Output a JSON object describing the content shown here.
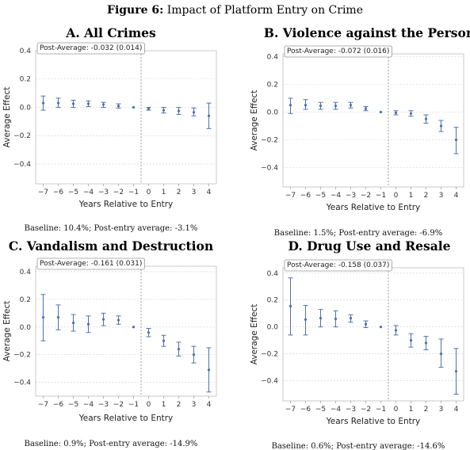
{
  "figure": {
    "title_bold": "Figure 6:",
    "title_rest": " Impact of Platform Entry on Crime"
  },
  "chart_data": [
    {
      "type": "scatter",
      "title": "A. All Crimes",
      "xlabel": "Years Relative to Entry",
      "ylabel": "Average Effect",
      "x": [
        -7,
        -6,
        -5,
        -4,
        -3,
        -2,
        -1,
        0,
        1,
        2,
        3,
        4
      ],
      "y": [
        0.03,
        0.03,
        0.025,
        0.025,
        0.02,
        0.01,
        0.0,
        -0.01,
        -0.02,
        -0.025,
        -0.035,
        -0.06
      ],
      "ci_low": [
        -0.02,
        0.0,
        0.0,
        0.005,
        0.0,
        -0.005,
        0.0,
        -0.02,
        -0.04,
        -0.05,
        -0.06,
        -0.15
      ],
      "ci_high": [
        0.08,
        0.065,
        0.05,
        0.045,
        0.035,
        0.025,
        0.0,
        0.0,
        0.0,
        0.0,
        -0.005,
        0.03
      ],
      "xticks": [
        -7,
        -6,
        -5,
        -4,
        -3,
        -2,
        -1,
        0,
        1,
        2,
        3,
        4
      ],
      "yticks": [
        0.4,
        0.2,
        0.0,
        -0.2,
        -0.4
      ],
      "ytick_labels": [
        "0.4",
        "0.2",
        "0.0",
        "−0.2",
        "−0.4"
      ],
      "xtick_labels": [
        "−7",
        "−6",
        "−5",
        "−4",
        "−3",
        "−2",
        "−1",
        "0",
        "1",
        "2",
        "3",
        "4"
      ],
      "ylim": [
        -0.54,
        0.4
      ],
      "xlim": [
        -7.5,
        4.5
      ],
      "grid": true,
      "entry_line_x": -0.5,
      "post_average": "Post-Average: -0.032 (0.014)",
      "note": "Baseline: 10.4%; Post-entry average: -3.1%"
    },
    {
      "type": "scatter",
      "title": "B. Violence against the Person",
      "xlabel": "Years Relative to Entry",
      "ylabel": "Average Effect",
      "x": [
        -7,
        -6,
        -5,
        -4,
        -3,
        -2,
        -1,
        0,
        1,
        2,
        3,
        4
      ],
      "y": [
        0.05,
        0.05,
        0.045,
        0.045,
        0.05,
        0.025,
        0.0,
        -0.005,
        -0.01,
        -0.05,
        -0.1,
        -0.2
      ],
      "ci_low": [
        -0.01,
        0.02,
        0.02,
        0.02,
        0.03,
        0.01,
        0.0,
        -0.02,
        -0.03,
        -0.08,
        -0.14,
        -0.3
      ],
      "ci_high": [
        0.1,
        0.09,
        0.07,
        0.07,
        0.07,
        0.04,
        0.0,
        0.01,
        0.01,
        -0.02,
        -0.06,
        -0.11
      ],
      "xticks": [
        -7,
        -6,
        -5,
        -4,
        -3,
        -2,
        -1,
        0,
        1,
        2,
        3,
        4
      ],
      "yticks": [
        0.4,
        0.2,
        0.0,
        -0.2,
        -0.4
      ],
      "ytick_labels": [
        "0.4",
        "0.2",
        "0.0",
        "−0.2",
        "−0.4"
      ],
      "xtick_labels": [
        "−7",
        "−6",
        "−5",
        "−4",
        "−3",
        "−2",
        "−1",
        "0",
        "1",
        "2",
        "3",
        "4"
      ],
      "ylim": [
        -0.54,
        0.42
      ],
      "xlim": [
        -7.5,
        4.5
      ],
      "grid": true,
      "entry_line_x": -0.5,
      "post_average": "Post-Average: -0.072 (0.016)",
      "note": "Baseline: 1.5%; Post-entry average: -6.9%"
    },
    {
      "type": "scatter",
      "title": "C. Vandalism and Destruction",
      "xlabel": "Years Relative to Entry",
      "ylabel": "Average Effect",
      "x": [
        -7,
        -6,
        -5,
        -4,
        -3,
        -2,
        -1,
        0,
        1,
        2,
        3,
        4
      ],
      "y": [
        0.07,
        0.07,
        0.03,
        0.02,
        0.055,
        0.05,
        0.0,
        -0.04,
        -0.1,
        -0.16,
        -0.2,
        -0.31
      ],
      "ci_low": [
        -0.1,
        -0.02,
        -0.03,
        -0.04,
        0.01,
        0.02,
        0.0,
        -0.07,
        -0.14,
        -0.21,
        -0.26,
        -0.47
      ],
      "ci_high": [
        0.235,
        0.16,
        0.09,
        0.08,
        0.1,
        0.08,
        0.0,
        -0.01,
        -0.06,
        -0.11,
        -0.14,
        -0.15
      ],
      "xticks": [
        -7,
        -6,
        -5,
        -4,
        -3,
        -2,
        -1,
        0,
        1,
        2,
        3,
        4
      ],
      "yticks": [
        0.4,
        0.2,
        0.0,
        -0.2,
        -0.4
      ],
      "ytick_labels": [
        "0.4",
        "0.2",
        "0.0",
        "−0.2",
        "−0.4"
      ],
      "xtick_labels": [
        "−7",
        "−6",
        "−5",
        "−4",
        "−3",
        "−2",
        "−1",
        "0",
        "1",
        "2",
        "3",
        "4"
      ],
      "ylim": [
        -0.5,
        0.44
      ],
      "xlim": [
        -7.5,
        4.5
      ],
      "grid": true,
      "entry_line_x": -0.5,
      "post_average": "Post-Average: -0.161 (0.031)",
      "note": "Baseline: 0.9%; Post-entry average: -14.9%"
    },
    {
      "type": "scatter",
      "title": "D. Drug Use and Resale",
      "xlabel": "Years Relative to Entry",
      "ylabel": "Average Effect",
      "x": [
        -7,
        -6,
        -5,
        -4,
        -3,
        -2,
        -1,
        0,
        1,
        2,
        3,
        4
      ],
      "y": [
        0.155,
        0.055,
        0.065,
        0.06,
        0.065,
        0.02,
        0.0,
        -0.025,
        -0.1,
        -0.12,
        -0.2,
        -0.33
      ],
      "ci_low": [
        -0.06,
        -0.06,
        0.0,
        0.0,
        0.035,
        -0.005,
        0.0,
        -0.06,
        -0.15,
        -0.17,
        -0.3,
        -0.5
      ],
      "ci_high": [
        0.365,
        0.16,
        0.13,
        0.12,
        0.09,
        0.045,
        0.0,
        0.01,
        -0.05,
        -0.07,
        -0.09,
        -0.16
      ],
      "xticks": [
        -7,
        -6,
        -5,
        -4,
        -3,
        -2,
        -1,
        0,
        1,
        2,
        3,
        4
      ],
      "yticks": [
        0.4,
        0.2,
        0.0,
        -0.2,
        -0.4
      ],
      "ytick_labels": [
        "0.4",
        "0.2",
        "0.0",
        "−0.2",
        "−0.4"
      ],
      "xtick_labels": [
        "−7",
        "−6",
        "−5",
        "−4",
        "−3",
        "−2",
        "−1",
        "0",
        "1",
        "2",
        "3",
        "4"
      ],
      "ylim": [
        -0.55,
        0.44
      ],
      "xlim": [
        -7.5,
        4.5
      ],
      "grid": true,
      "entry_line_x": -0.5,
      "post_average": "Post-Average: -0.158 (0.037)",
      "note": "Baseline: 0.6%; Post-entry average: -14.6%"
    }
  ],
  "colors": {
    "marker": "#4c72b0",
    "grid": "#d0d0d0",
    "axis_frame": "#bbbbbb",
    "entry_line": "#888888",
    "label_box_edge": "#999999"
  }
}
